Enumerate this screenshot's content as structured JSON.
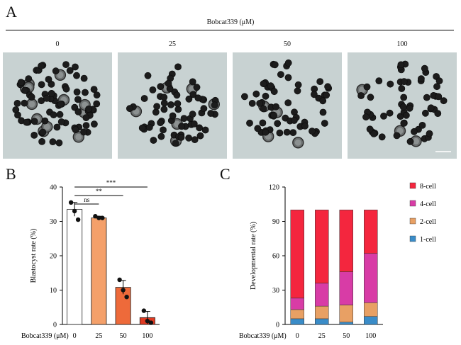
{
  "figure": {
    "panel_a": {
      "letter": "A",
      "treatment_header": "Bobcat339 (μM)",
      "doses": [
        "0",
        "25",
        "50",
        "100"
      ]
    },
    "panel_b": {
      "letter": "B"
    },
    "panel_c": {
      "letter": "C"
    }
  },
  "chart_data": [
    {
      "type": "bar",
      "title": "",
      "ylabel": "Blastocyst rate (%)",
      "xlabel": "Bobcat339 (μM)",
      "categories": [
        "0",
        "25",
        "50",
        "100"
      ],
      "values": [
        33.5,
        31,
        10.8,
        2
      ],
      "error": [
        2,
        0.5,
        2,
        1.8
      ],
      "points": [
        [
          35.5,
          33,
          30.5
        ],
        [
          31.5,
          31,
          31
        ],
        [
          13,
          10,
          8
        ],
        [
          4,
          1,
          0.5
        ]
      ],
      "bar_colors": [
        "#ffffff",
        "#f4a06a",
        "#ee6a3a",
        "#e03a22"
      ],
      "ylim": [
        0,
        40
      ],
      "yticks": [
        0,
        10,
        20,
        30,
        40
      ],
      "significance": [
        {
          "from": "0",
          "to": "25",
          "label": "ns"
        },
        {
          "from": "0",
          "to": "50",
          "label": "**"
        },
        {
          "from": "0",
          "to": "100",
          "label": "***"
        }
      ]
    },
    {
      "type": "bar",
      "stacked": true,
      "title": "",
      "ylabel": "Developmental rate (%)",
      "xlabel": "Bobcat339 (μM)",
      "categories": [
        "0",
        "25",
        "50",
        "100"
      ],
      "ylim": [
        0,
        120
      ],
      "yticks": [
        0,
        30,
        60,
        90,
        120
      ],
      "series": [
        {
          "name": "1-cell",
          "color": "#3a8cc8",
          "values": [
            5,
            5,
            2,
            7
          ]
        },
        {
          "name": "2-cell",
          "color": "#e8a064",
          "values": [
            8,
            11,
            15,
            12
          ]
        },
        {
          "name": "4-cell",
          "color": "#d83ca6",
          "values": [
            10,
            20,
            29,
            43
          ]
        },
        {
          "name": "8-cell",
          "color": "#f4263e",
          "values": [
            77,
            64,
            54,
            38
          ]
        }
      ],
      "legend_position": "right",
      "legend_order": [
        "8-cell",
        "4-cell",
        "2-cell",
        "1-cell"
      ]
    }
  ]
}
